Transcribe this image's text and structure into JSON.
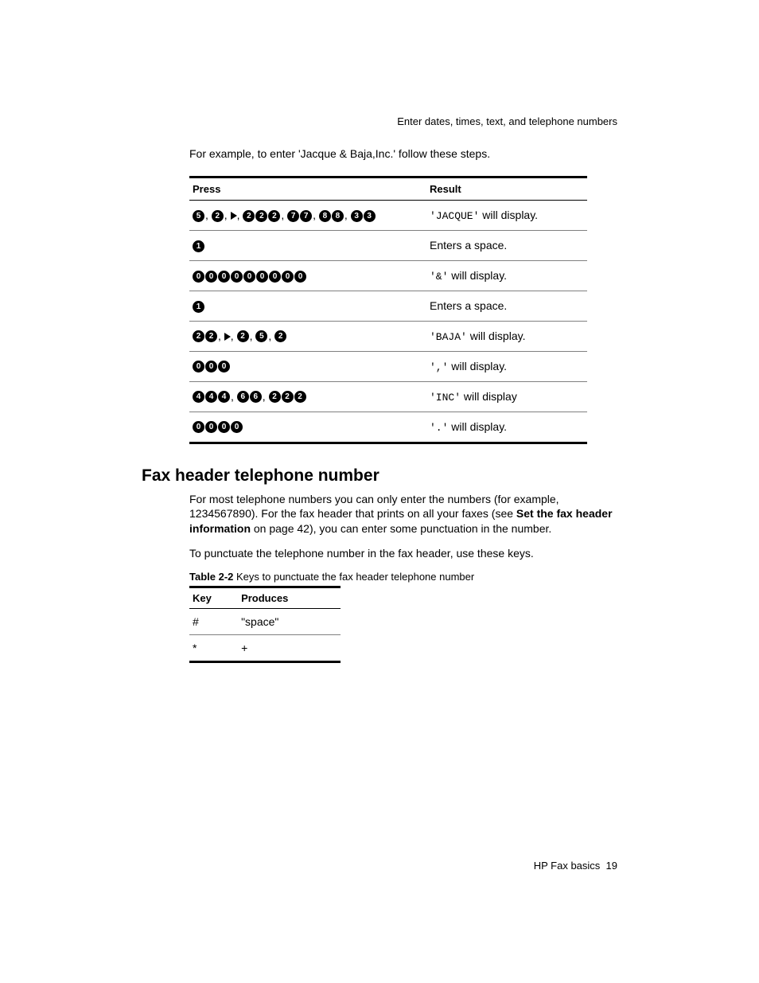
{
  "running_head": "Enter dates, times, text, and telephone numbers",
  "intro": "For example, to enter 'Jacque & Baja,Inc.' follow these steps.",
  "table1": {
    "headers": {
      "press": "Press",
      "result": "Result"
    },
    "rows": [
      {
        "press": [
          {
            "type": "key",
            "n": "5"
          },
          {
            "type": "comma"
          },
          {
            "type": "key",
            "n": "2"
          },
          {
            "type": "comma"
          },
          {
            "type": "arrow"
          },
          {
            "type": "comma"
          },
          {
            "type": "key",
            "n": "2"
          },
          {
            "type": "key",
            "n": "2"
          },
          {
            "type": "key",
            "n": "2"
          },
          {
            "type": "comma"
          },
          {
            "type": "key",
            "n": "7"
          },
          {
            "type": "key",
            "n": "7"
          },
          {
            "type": "comma"
          },
          {
            "type": "key",
            "n": "8"
          },
          {
            "type": "key",
            "n": "8"
          },
          {
            "type": "comma"
          },
          {
            "type": "key",
            "n": "3"
          },
          {
            "type": "key",
            "n": "3"
          }
        ],
        "result_pre": "'JACQUE'",
        "result_post": " will display."
      },
      {
        "press": [
          {
            "type": "key",
            "n": "1"
          }
        ],
        "result_pre": "",
        "result_post": "Enters a space."
      },
      {
        "press": [
          {
            "type": "key",
            "n": "0"
          },
          {
            "type": "key",
            "n": "0"
          },
          {
            "type": "key",
            "n": "0"
          },
          {
            "type": "key",
            "n": "0"
          },
          {
            "type": "key",
            "n": "0"
          },
          {
            "type": "key",
            "n": "0"
          },
          {
            "type": "key",
            "n": "0"
          },
          {
            "type": "key",
            "n": "0"
          },
          {
            "type": "key",
            "n": "0"
          }
        ],
        "result_pre": "'&'",
        "result_post": " will display."
      },
      {
        "press": [
          {
            "type": "key",
            "n": "1"
          }
        ],
        "result_pre": "",
        "result_post": "Enters a space."
      },
      {
        "press": [
          {
            "type": "key",
            "n": "2"
          },
          {
            "type": "key",
            "n": "2"
          },
          {
            "type": "comma"
          },
          {
            "type": "arrow"
          },
          {
            "type": "comma"
          },
          {
            "type": "key",
            "n": "2"
          },
          {
            "type": "comma"
          },
          {
            "type": "key",
            "n": "5"
          },
          {
            "type": "comma"
          },
          {
            "type": "key",
            "n": "2"
          }
        ],
        "result_pre": "'BAJA'",
        "result_post": " will display."
      },
      {
        "press": [
          {
            "type": "key",
            "n": "0"
          },
          {
            "type": "key",
            "n": "0"
          },
          {
            "type": "key",
            "n": "0"
          }
        ],
        "result_pre": "','",
        "result_post": " will display."
      },
      {
        "press": [
          {
            "type": "key",
            "n": "4"
          },
          {
            "type": "key",
            "n": "4"
          },
          {
            "type": "key",
            "n": "4"
          },
          {
            "type": "comma"
          },
          {
            "type": "key",
            "n": "6"
          },
          {
            "type": "key",
            "n": "6"
          },
          {
            "type": "comma"
          },
          {
            "type": "key",
            "n": "2"
          },
          {
            "type": "key",
            "n": "2"
          },
          {
            "type": "key",
            "n": "2"
          }
        ],
        "result_pre": "'INC'",
        "result_post": " will display"
      },
      {
        "press": [
          {
            "type": "key",
            "n": "0"
          },
          {
            "type": "key",
            "n": "0"
          },
          {
            "type": "key",
            "n": "0"
          },
          {
            "type": "key",
            "n": "0"
          }
        ],
        "result_pre": "'.'",
        "result_post": " will display."
      }
    ]
  },
  "section_heading": "Fax header telephone number",
  "para1_parts": {
    "a": "For most telephone numbers you can only enter the numbers (for example, 1234567890). For the fax header that prints on all your faxes (see ",
    "b": "Set the fax header information",
    "c": " on page 42), you can enter some punctuation in the number."
  },
  "para2": "To punctuate the telephone number in the fax header, use these keys.",
  "table2_caption": {
    "label": "Table 2-2",
    "text": "   Keys to punctuate the fax header telephone number"
  },
  "table2": {
    "headers": {
      "key": "Key",
      "produces": "Produces"
    },
    "rows": [
      {
        "key": "#",
        "produces": "\"space\""
      },
      {
        "key": "*",
        "produces": "+"
      }
    ]
  },
  "footer": {
    "text": "HP Fax basics",
    "page": "19"
  }
}
